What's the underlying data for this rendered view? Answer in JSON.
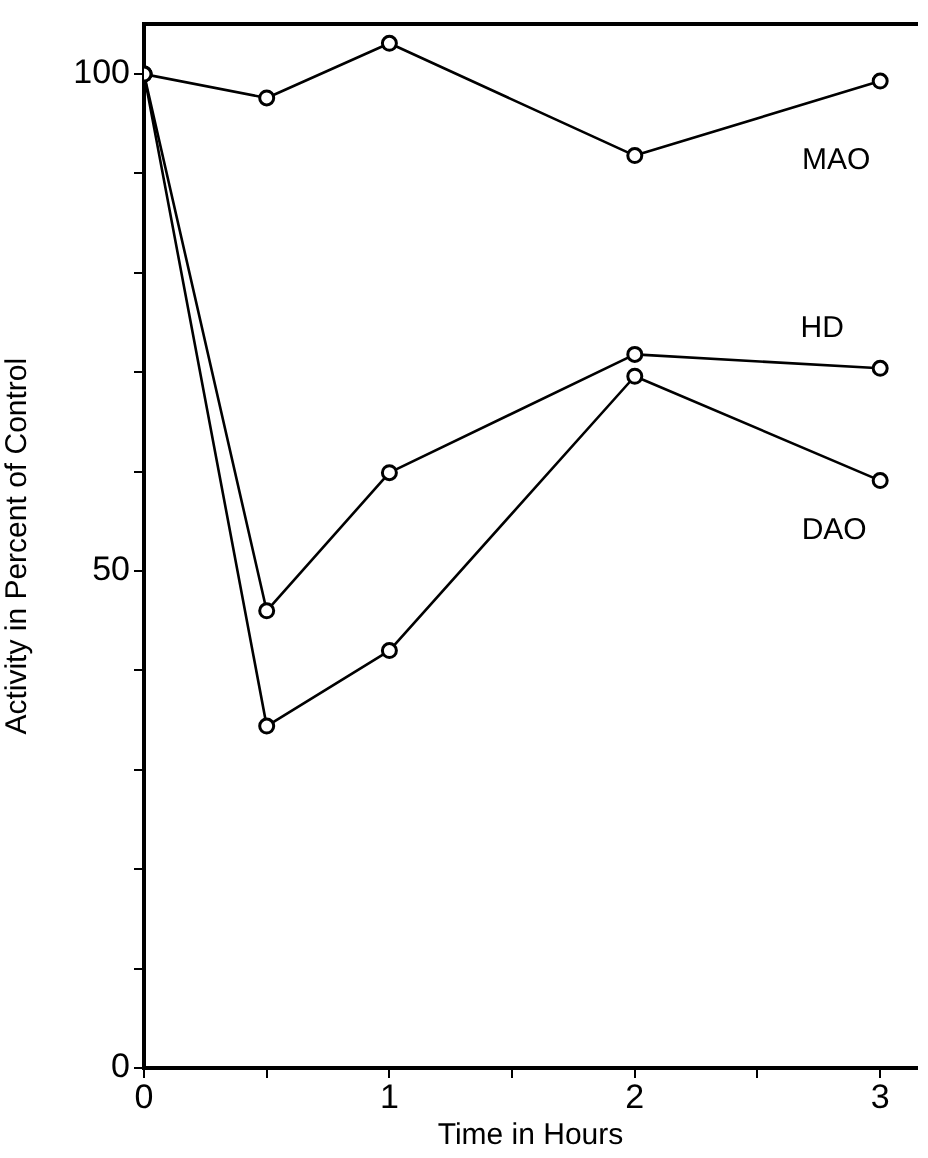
{
  "chart_data": {
    "type": "line",
    "xlabel": "Time in Hours",
    "ylabel": "Activity in Percent of Control",
    "x": [
      0,
      0.5,
      1,
      2,
      3
    ],
    "series": [
      {
        "name": "MAO",
        "color": "#000000",
        "values": [
          100,
          97.6,
          103.1,
          91.8,
          99.3
        ]
      },
      {
        "name": "HD",
        "color": "#000000",
        "values": [
          100,
          46,
          59.9,
          71.8,
          70.4
        ]
      },
      {
        "name": "DAO",
        "color": "#000000",
        "values": [
          100,
          34.4,
          42,
          69.6,
          59.1
        ]
      }
    ],
    "xlim": [
      0,
      3.15
    ],
    "xticks": [
      0,
      {
        "value": 0.5,
        "label": null
      },
      1,
      {
        "value": 1.5,
        "label": null
      },
      2,
      {
        "value": 2.5,
        "label": null
      },
      3
    ],
    "ylim": [
      0,
      105
    ],
    "yticks": [
      0,
      {
        "value": 10,
        "label": null
      },
      {
        "value": 20,
        "label": null
      },
      {
        "value": 30,
        "label": null
      },
      {
        "value": 40,
        "label": null
      },
      50,
      {
        "value": 60,
        "label": null
      },
      {
        "value": 70,
        "label": null
      },
      {
        "value": 80,
        "label": null
      },
      {
        "value": 90,
        "label": null
      },
      100
    ],
    "grid": false,
    "legend": false,
    "marker": "circle",
    "line_style": "solid"
  }
}
